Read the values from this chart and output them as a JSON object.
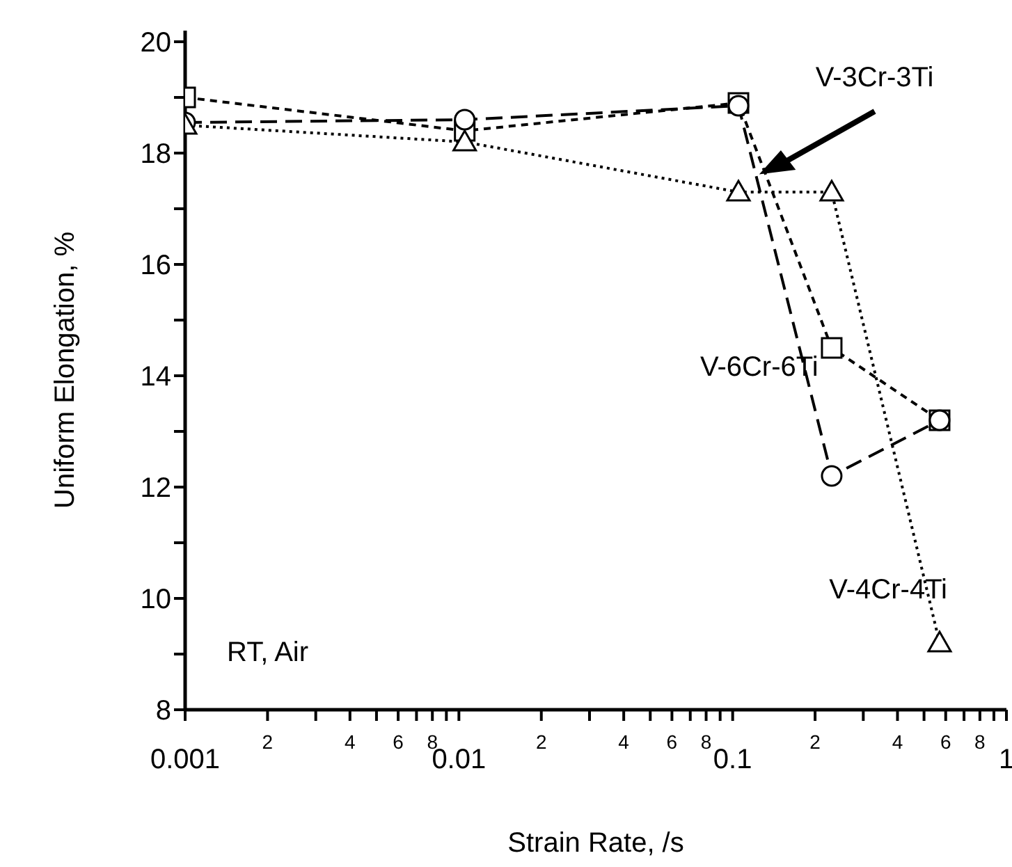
{
  "chart_data": {
    "type": "line",
    "xlabel": "Strain Rate, /s",
    "ylabel": "Uniform Elongation, %",
    "log": "x",
    "xlim": [
      0.001,
      1
    ],
    "ylim": [
      8,
      20.2
    ],
    "xticks": [
      0.001,
      {
        "value": 0.002,
        "label": null
      },
      {
        "value": 0.003,
        "label": null
      },
      {
        "value": 0.004,
        "label": null
      },
      {
        "value": 0.005,
        "label": null
      },
      {
        "value": 0.006,
        "label": null
      },
      {
        "value": 0.007,
        "label": null
      },
      {
        "value": 0.008,
        "label": null
      },
      {
        "value": 0.009,
        "label": null
      },
      0.01,
      {
        "value": 0.02,
        "label": null
      },
      {
        "value": 0.03,
        "label": null
      },
      {
        "value": 0.04,
        "label": null
      },
      {
        "value": 0.05,
        "label": null
      },
      {
        "value": 0.06,
        "label": null
      },
      {
        "value": 0.07,
        "label": null
      },
      {
        "value": 0.08,
        "label": null
      },
      {
        "value": 0.09,
        "label": null
      },
      0.1,
      {
        "value": 0.2,
        "label": null
      },
      {
        "value": 0.3,
        "label": null
      },
      {
        "value": 0.4,
        "label": null
      },
      {
        "value": 0.5,
        "label": null
      },
      {
        "value": 0.6,
        "label": null
      },
      {
        "value": 0.7,
        "label": null
      },
      {
        "value": 0.8,
        "label": null
      },
      {
        "value": 0.9,
        "label": null
      },
      1
    ],
    "yticks": [
      8,
      {
        "value": 9,
        "label": null
      },
      10,
      {
        "value": 11,
        "label": null
      },
      12,
      {
        "value": 13,
        "label": null
      },
      14,
      {
        "value": 15,
        "label": null
      },
      16,
      {
        "value": 17,
        "label": null
      },
      18,
      {
        "value": 19,
        "label": null
      },
      20
    ],
    "series": [
      {
        "name": "V-3Cr-3Ti",
        "color": "#000000",
        "marker": "square",
        "line_style": "dashed",
        "x": [
          0.001,
          0.0105,
          0.105,
          0.23,
          0.57
        ],
        "values": [
          19.0,
          18.4,
          18.9,
          14.5,
          13.2
        ]
      },
      {
        "name": "V-6Cr-6Ti",
        "color": "#000000",
        "marker": "circle",
        "line_style": "dashed",
        "x": [
          0.001,
          0.0105,
          0.105,
          0.23,
          0.57
        ],
        "values": [
          18.55,
          18.6,
          18.85,
          12.2,
          13.2
        ]
      },
      {
        "name": "V-4Cr-4Ti",
        "color": "#000000",
        "marker": "triangle",
        "line_style": "dotted",
        "x": [
          0.001,
          0.0105,
          0.105,
          0.23,
          0.57
        ],
        "values": [
          18.5,
          18.2,
          17.3,
          17.3,
          9.2
        ]
      }
    ],
    "annotations": [
      "RT, Air",
      "2",
      "4",
      "6",
      "8",
      "2",
      "4",
      "6",
      "8",
      "2",
      "4",
      "6",
      "8"
    ]
  }
}
